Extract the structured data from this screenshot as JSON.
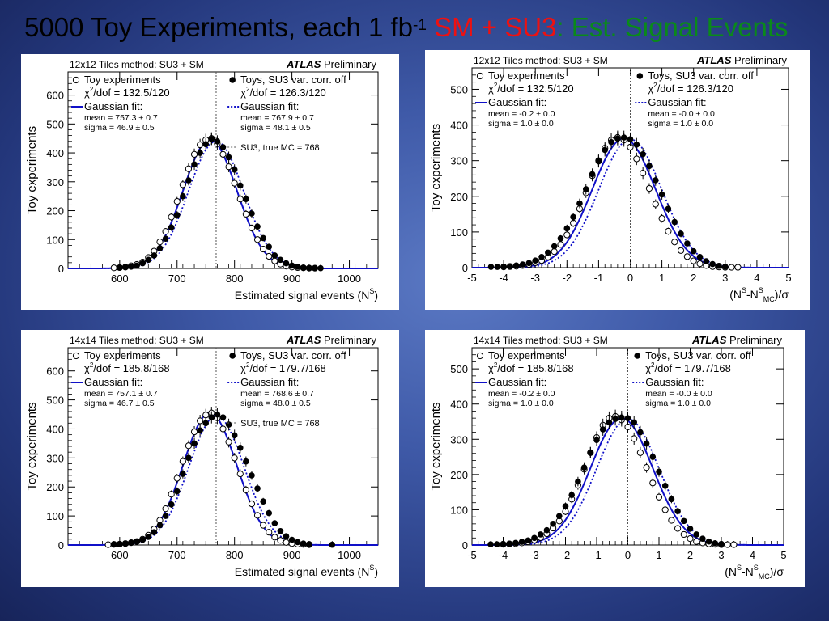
{
  "slide": {
    "title_main": "5000 Toy Experiments, each 1 fb",
    "title_sup": "-1",
    "title_sm": " SM + SU3",
    "title_rest": ": Est. Signal Events",
    "colors": {
      "title_text": "#000000",
      "title_sm": "#ee1111",
      "title_rest": "#0a8a1a",
      "fit": "#1010c8"
    }
  },
  "chart_data": [
    {
      "type": "scatter",
      "header_left": "12x12 Tiles method: SU3 + SM",
      "header_atlas": "ATLAS",
      "header_prelim": "Preliminary",
      "xlabel": "Estimated signal events (N",
      "xlabel_sup": "S",
      "xlabel_tail": ")",
      "ylabel": "Toy experiments",
      "xlim": [
        510,
        1050
      ],
      "ylim": [
        0,
        680
      ],
      "xticks": [
        600,
        700,
        800,
        900,
        1000
      ],
      "yticks": [
        0,
        100,
        200,
        300,
        400,
        500,
        600
      ],
      "vline": 768,
      "legend_left": {
        "marker": "Toy experiments",
        "chi2": "/dof = 132.5/120",
        "fit_label": "Gaussian fit:",
        "mean": "mean  = 757.3 ± 0.7",
        "sigma": "sigma = 46.9 ± 0.5"
      },
      "legend_right": {
        "marker": "Toys, SU3 var. corr. off",
        "chi2": "/dof = 126.3/120",
        "fit_label": "Gaussian fit:",
        "mean": "mean  = 767.9 ± 0.7",
        "sigma": "sigma = 48.1 ± 0.5",
        "extra": "SU3, true MC = 768"
      },
      "series": [
        {
          "name": "Toy experiments",
          "marker": "open",
          "x": [
            590,
            600,
            610,
            620,
            630,
            640,
            650,
            660,
            670,
            680,
            690,
            700,
            710,
            720,
            730,
            740,
            750,
            760,
            770,
            780,
            790,
            800,
            810,
            820,
            830,
            840,
            850,
            860,
            870,
            880,
            890,
            900,
            910,
            920,
            930,
            940
          ],
          "y": [
            2,
            3,
            5,
            9,
            14,
            22,
            38,
            60,
            92,
            128,
            178,
            232,
            290,
            345,
            395,
            428,
            445,
            450,
            432,
            395,
            352,
            295,
            240,
            188,
            140,
            100,
            67,
            42,
            26,
            15,
            8,
            5,
            3,
            2,
            1,
            1
          ]
        },
        {
          "name": "Toys, SU3 var. corr. off",
          "marker": "filled",
          "x": [
            600,
            610,
            620,
            630,
            640,
            650,
            660,
            670,
            680,
            690,
            700,
            710,
            720,
            730,
            740,
            750,
            760,
            770,
            780,
            790,
            800,
            810,
            820,
            830,
            840,
            850,
            860,
            870,
            880,
            890,
            900,
            910,
            920,
            930,
            940,
            950
          ],
          "y": [
            3,
            4,
            6,
            10,
            18,
            30,
            45,
            70,
            103,
            142,
            185,
            250,
            305,
            360,
            400,
            430,
            448,
            440,
            420,
            385,
            342,
            287,
            240,
            190,
            145,
            105,
            75,
            45,
            30,
            18,
            10,
            6,
            3,
            2,
            1,
            1
          ]
        }
      ],
      "fits": [
        {
          "style": "solid",
          "mean": 757.3,
          "sigma": 46.9,
          "peak": 445
        },
        {
          "style": "dotted",
          "mean": 767.9,
          "sigma": 48.1,
          "peak": 440
        }
      ]
    },
    {
      "type": "scatter",
      "header_left": "12x12 Tiles method: SU3 + SM",
      "header_atlas": "ATLAS",
      "header_prelim": "Preliminary",
      "xlabel": "(N",
      "xlabel_sup": "S",
      "xlabel_tail": "-N",
      "xlabel_sup2": "S",
      "xlabel_sub2": "MC",
      "xlabel_end": ")/σ",
      "ylabel": "Toy experiments",
      "xlim": [
        -5,
        5
      ],
      "ylim": [
        0,
        560
      ],
      "xticks": [
        -5,
        -4,
        -3,
        -2,
        -1,
        0,
        1,
        2,
        3,
        4,
        5
      ],
      "yticks": [
        0,
        100,
        200,
        300,
        400,
        500
      ],
      "vline": 0,
      "legend_left": {
        "marker": "Toy experiments",
        "chi2": "/dof = 132.5/120",
        "fit_label": "Gaussian fit:",
        "mean": "mean  = -0.2 ± 0.0",
        "sigma": "sigma = 1.0 ± 0.0"
      },
      "legend_right": {
        "marker": "Toys, SU3 var. corr. off",
        "chi2": "/dof = 126.3/120",
        "fit_label": "Gaussian fit:",
        "mean": "mean  = -0.0 ± 0.0",
        "sigma": "sigma = 1.0 ± 0.0"
      },
      "series": [
        {
          "name": "Toy experiments",
          "marker": "open",
          "x": [
            -4.0,
            -3.8,
            -3.6,
            -3.4,
            -3.2,
            -3.0,
            -2.8,
            -2.6,
            -2.4,
            -2.2,
            -2.0,
            -1.8,
            -1.6,
            -1.4,
            -1.2,
            -1.0,
            -0.8,
            -0.6,
            -0.4,
            -0.2,
            0.0,
            0.2,
            0.4,
            0.6,
            0.8,
            1.0,
            1.2,
            1.4,
            1.6,
            1.8,
            2.0,
            2.2,
            2.4,
            2.6,
            2.8,
            3.0,
            3.2,
            3.4
          ],
          "y": [
            2,
            3,
            4,
            6,
            9,
            14,
            20,
            30,
            45,
            65,
            92,
            125,
            165,
            210,
            258,
            300,
            335,
            358,
            365,
            358,
            338,
            305,
            265,
            222,
            178,
            138,
            102,
            72,
            48,
            31,
            19,
            11,
            6,
            3,
            2,
            1,
            1,
            1
          ]
        },
        {
          "name": "Toys, SU3 var. corr. off",
          "marker": "filled",
          "x": [
            -4.4,
            -4.2,
            -4.0,
            -3.8,
            -3.6,
            -3.4,
            -3.2,
            -3.0,
            -2.8,
            -2.6,
            -2.4,
            -2.2,
            -2.0,
            -1.8,
            -1.6,
            -1.4,
            -1.2,
            -1.0,
            -0.8,
            -0.6,
            -0.4,
            -0.2,
            0.0,
            0.2,
            0.4,
            0.6,
            0.8,
            1.0,
            1.2,
            1.4,
            1.6,
            1.8,
            2.0,
            2.2,
            2.4,
            2.6,
            2.8,
            3.0
          ],
          "y": [
            2,
            2,
            3,
            4,
            6,
            9,
            13,
            20,
            30,
            42,
            60,
            82,
            110,
            142,
            180,
            220,
            262,
            298,
            330,
            352,
            362,
            365,
            360,
            345,
            318,
            285,
            245,
            205,
            165,
            128,
            95,
            68,
            46,
            30,
            18,
            10,
            5,
            3
          ]
        }
      ],
      "fits": [
        {
          "style": "solid",
          "mean": -0.2,
          "sigma": 1.0,
          "peak": 362
        },
        {
          "style": "dotted",
          "mean": 0.0,
          "sigma": 1.0,
          "peak": 360
        }
      ]
    },
    {
      "type": "scatter",
      "header_left": "14x14 Tiles method: SU3 + SM",
      "header_atlas": "ATLAS",
      "header_prelim": "Preliminary",
      "xlabel": "Estimated signal events (N",
      "xlabel_sup": "S",
      "xlabel_tail": ")",
      "ylabel": "Toy experiments",
      "xlim": [
        510,
        1050
      ],
      "ylim": [
        0,
        680
      ],
      "xticks": [
        600,
        700,
        800,
        900,
        1000
      ],
      "yticks": [
        0,
        100,
        200,
        300,
        400,
        500,
        600
      ],
      "vline": 768,
      "legend_left": {
        "marker": "Toy experiments",
        "chi2": "/dof = 185.8/168",
        "fit_label": "Gaussian fit:",
        "mean": "mean  = 757.1 ± 0.7",
        "sigma": "sigma = 46.7 ± 0.5"
      },
      "legend_right": {
        "marker": "Toys, SU3 var. corr. off",
        "chi2": "/dof = 179.7/168",
        "fit_label": "Gaussian fit:",
        "mean": "mean  = 768.6 ± 0.7",
        "sigma": "sigma = 48.0 ± 0.5",
        "extra": "SU3, true MC = 768"
      },
      "series": [
        {
          "name": "Toy experiments",
          "marker": "open",
          "x": [
            580,
            590,
            600,
            610,
            620,
            630,
            640,
            650,
            660,
            670,
            680,
            690,
            700,
            710,
            720,
            730,
            740,
            750,
            760,
            770,
            780,
            790,
            800,
            810,
            820,
            830,
            840,
            850,
            860,
            870,
            880,
            890,
            900,
            910,
            920,
            930
          ],
          "y": [
            1,
            2,
            3,
            5,
            8,
            12,
            20,
            34,
            55,
            85,
            125,
            175,
            230,
            288,
            342,
            390,
            428,
            448,
            455,
            438,
            400,
            355,
            300,
            245,
            190,
            142,
            102,
            68,
            44,
            27,
            16,
            9,
            5,
            3,
            2,
            1
          ]
        },
        {
          "name": "Toys, SU3 var. corr. off",
          "marker": "filled",
          "x": [
            590,
            600,
            610,
            620,
            630,
            640,
            650,
            660,
            670,
            680,
            690,
            700,
            710,
            720,
            730,
            740,
            750,
            760,
            770,
            780,
            790,
            800,
            810,
            820,
            830,
            840,
            850,
            860,
            870,
            880,
            890,
            900,
            910,
            920,
            930,
            970
          ],
          "y": [
            2,
            3,
            5,
            8,
            12,
            18,
            28,
            44,
            68,
            100,
            140,
            185,
            245,
            300,
            350,
            395,
            420,
            440,
            450,
            440,
            415,
            378,
            335,
            288,
            240,
            195,
            150,
            110,
            75,
            48,
            30,
            18,
            10,
            5,
            3,
            1
          ]
        }
      ],
      "fits": [
        {
          "style": "solid",
          "mean": 757.1,
          "sigma": 46.7,
          "peak": 455
        },
        {
          "style": "dotted",
          "mean": 768.6,
          "sigma": 48.0,
          "peak": 445
        }
      ]
    },
    {
      "type": "scatter",
      "header_left": "14x14 Tiles method: SU3 + SM",
      "header_atlas": "ATLAS",
      "header_prelim": "Preliminary",
      "xlabel": "(N",
      "xlabel_sup": "S",
      "xlabel_tail": "-N",
      "xlabel_sup2": "S",
      "xlabel_sub2": "MC",
      "xlabel_end": ")/σ",
      "ylabel": "Toy experiments",
      "xlim": [
        -5,
        5
      ],
      "ylim": [
        0,
        560
      ],
      "xticks": [
        -5,
        -4,
        -3,
        -2,
        -1,
        0,
        1,
        2,
        3,
        4,
        5
      ],
      "yticks": [
        0,
        100,
        200,
        300,
        400,
        500
      ],
      "vline": 0,
      "legend_left": {
        "marker": "Toy experiments",
        "chi2": "/dof = 185.8/168",
        "fit_label": "Gaussian fit:",
        "mean": "mean  = -0.2 ± 0.0",
        "sigma": "sigma = 1.0 ± 0.0"
      },
      "legend_right": {
        "marker": "Toys, SU3 var. corr. off",
        "chi2": "/dof = 179.7/168",
        "fit_label": "Gaussian fit:",
        "mean": "mean  = -0.0 ± 0.0",
        "sigma": "sigma = 1.0 ± 0.0"
      },
      "series": [
        {
          "name": "Toy experiments",
          "marker": "open",
          "x": [
            -4.0,
            -3.8,
            -3.6,
            -3.4,
            -3.2,
            -3.0,
            -2.8,
            -2.6,
            -2.4,
            -2.2,
            -2.0,
            -1.8,
            -1.6,
            -1.4,
            -1.2,
            -1.0,
            -0.8,
            -0.6,
            -0.4,
            -0.2,
            0.0,
            0.2,
            0.4,
            0.6,
            0.8,
            1.0,
            1.2,
            1.4,
            1.6,
            1.8,
            2.0,
            2.2,
            2.4,
            2.6,
            2.8,
            3.0,
            3.2,
            3.4
          ],
          "y": [
            2,
            3,
            4,
            6,
            9,
            14,
            21,
            32,
            48,
            68,
            95,
            130,
            170,
            215,
            262,
            305,
            340,
            360,
            365,
            355,
            335,
            302,
            262,
            220,
            176,
            136,
            100,
            70,
            47,
            30,
            18,
            10,
            6,
            3,
            2,
            1,
            1,
            1
          ]
        },
        {
          "name": "Toys, SU3 var. corr. off",
          "marker": "filled",
          "x": [
            -4.4,
            -4.2,
            -4.0,
            -3.8,
            -3.6,
            -3.4,
            -3.2,
            -3.0,
            -2.8,
            -2.6,
            -2.4,
            -2.2,
            -2.0,
            -1.8,
            -1.6,
            -1.4,
            -1.2,
            -1.0,
            -0.8,
            -0.6,
            -0.4,
            -0.2,
            0.0,
            0.2,
            0.4,
            0.6,
            0.8,
            1.0,
            1.2,
            1.4,
            1.6,
            1.8,
            2.0,
            2.2,
            2.4,
            2.6,
            2.8,
            3.0
          ],
          "y": [
            2,
            2,
            3,
            4,
            6,
            9,
            13,
            20,
            30,
            42,
            60,
            82,
            110,
            142,
            180,
            220,
            262,
            298,
            328,
            348,
            358,
            362,
            360,
            348,
            320,
            288,
            250,
            208,
            168,
            130,
            96,
            68,
            46,
            30,
            18,
            10,
            5,
            3
          ]
        }
      ],
      "fits": [
        {
          "style": "solid",
          "mean": -0.2,
          "sigma": 1.0,
          "peak": 360
        },
        {
          "style": "dotted",
          "mean": 0.0,
          "sigma": 1.0,
          "peak": 358
        }
      ]
    }
  ]
}
